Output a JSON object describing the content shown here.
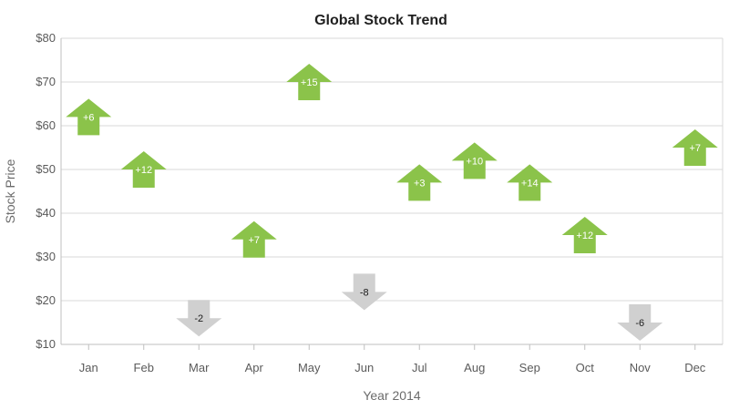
{
  "chart_data": {
    "type": "scatter",
    "title": "Global Stock Trend",
    "xlabel": "Year 2014",
    "ylabel": "Stock Price",
    "categories": [
      "Jan",
      "Feb",
      "Mar",
      "Apr",
      "May",
      "Jun",
      "Jul",
      "Aug",
      "Sep",
      "Oct",
      "Nov",
      "Dec"
    ],
    "values": [
      62,
      50,
      16,
      34,
      70,
      22,
      47,
      52,
      47,
      35,
      15,
      55
    ],
    "changes": [
      "+6",
      "+12",
      "-2",
      "+7",
      "+15",
      "-8",
      "+3",
      "+10",
      "+14",
      "+12",
      "-6",
      "+7"
    ],
    "directions": [
      "up",
      "up",
      "down",
      "up",
      "up",
      "down",
      "up",
      "up",
      "up",
      "up",
      "down",
      "up"
    ],
    "ylim": [
      10,
      80
    ],
    "y_ticks": [
      "$10",
      "$20",
      "$30",
      "$40",
      "$50",
      "$60",
      "$70",
      "$80"
    ],
    "y_tick_values": [
      10,
      20,
      30,
      40,
      50,
      60,
      70,
      80
    ],
    "grid": true,
    "colors": {
      "up": "#8bc34a",
      "down": "#d0d0d0",
      "up_label": "#ffffff",
      "down_label": "#1a1a1a"
    }
  }
}
